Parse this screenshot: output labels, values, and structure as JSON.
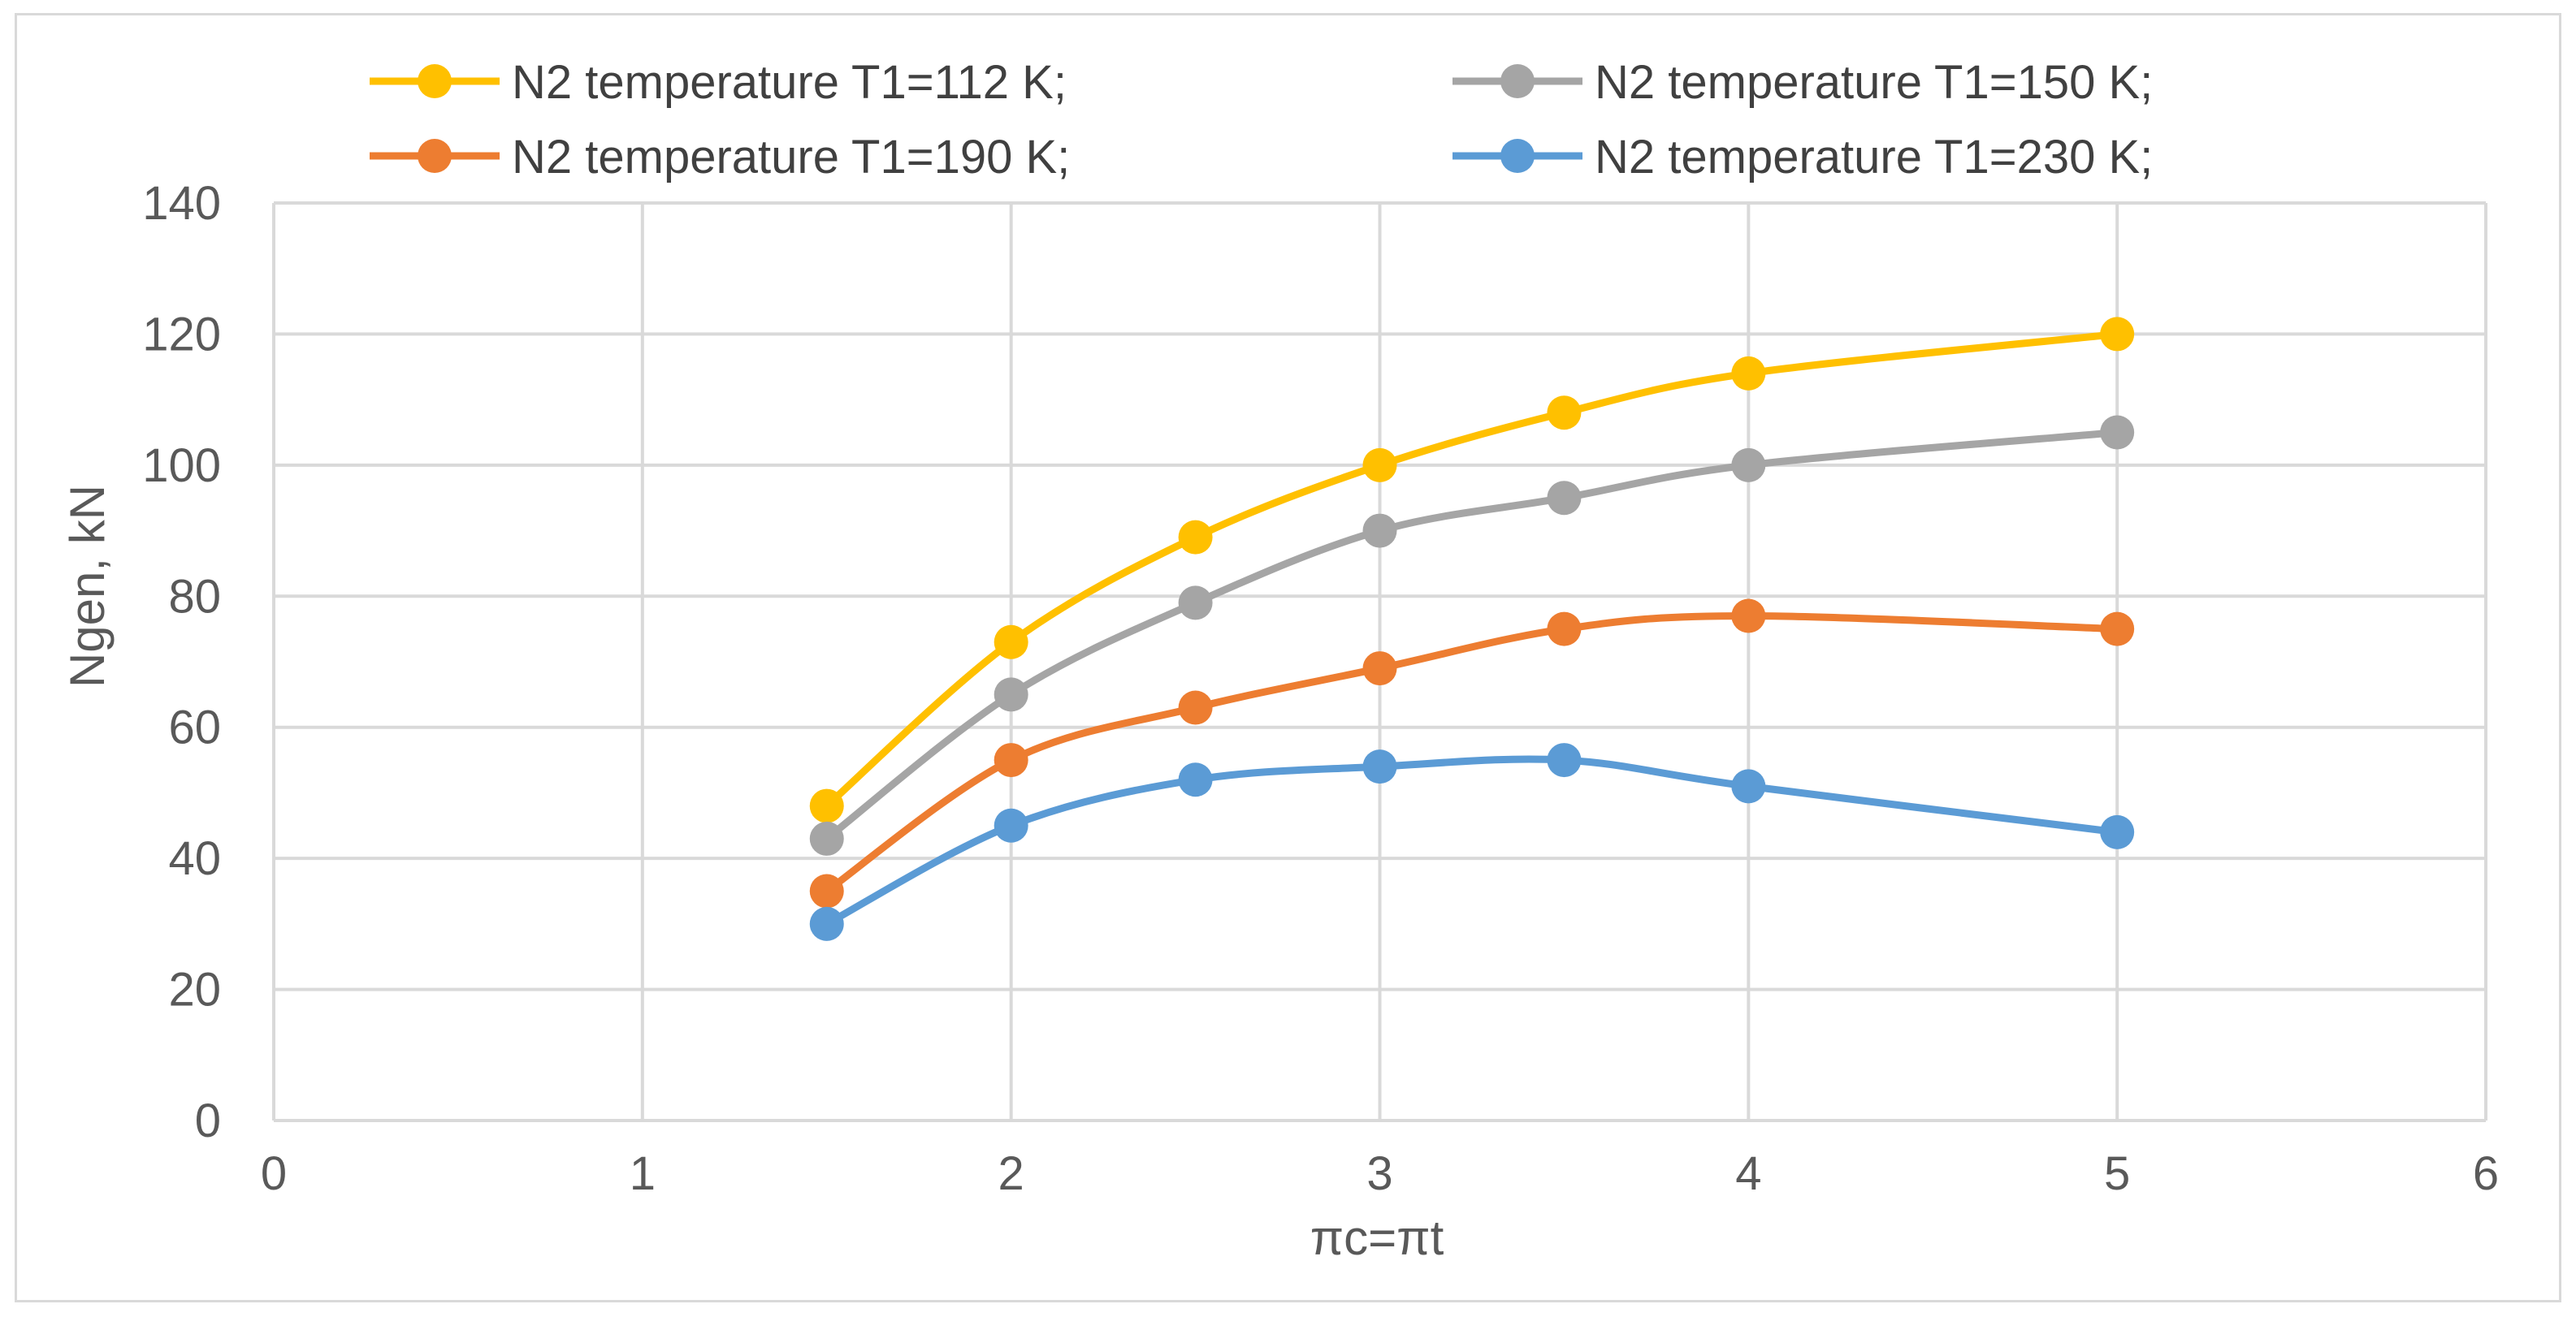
{
  "chart_data": {
    "type": "line",
    "title": "",
    "xlabel": "πc=πt",
    "ylabel": "Ngen, kN",
    "xlim": [
      0,
      6
    ],
    "ylim": [
      0,
      140
    ],
    "xticks": [
      0,
      1,
      2,
      3,
      4,
      5,
      6
    ],
    "yticks": [
      0,
      20,
      40,
      60,
      80,
      100,
      120,
      140
    ],
    "xtick_labels": [
      "0",
      "1",
      "2",
      "3",
      "4",
      "5",
      "6"
    ],
    "ytick_labels": [
      "0",
      "20",
      "40",
      "60",
      "80",
      "100",
      "120",
      "140"
    ],
    "grid": true,
    "legend_position": "top",
    "x": [
      1.5,
      2,
      2.5,
      3,
      3.5,
      4,
      5
    ],
    "series": [
      {
        "name": "N2 temperature T1=112 K;",
        "color": "#FFC000",
        "values": [
          48,
          73,
          89,
          100,
          108,
          114,
          120
        ]
      },
      {
        "name": "N2 temperature T1=150 K;",
        "color": "#A5A5A5",
        "values": [
          43,
          65,
          79,
          90,
          95,
          100,
          105
        ]
      },
      {
        "name": "N2 temperature T1=190 K;",
        "color": "#ED7D31",
        "values": [
          35,
          55,
          63,
          69,
          75,
          77,
          75
        ]
      },
      {
        "name": "N2 temperature T1=230 K;",
        "color": "#5B9BD5",
        "values": [
          30,
          45,
          52,
          54,
          55,
          51,
          44
        ]
      }
    ],
    "gridline_color": "#d9d9d9",
    "axis_text_color": "#595959"
  }
}
